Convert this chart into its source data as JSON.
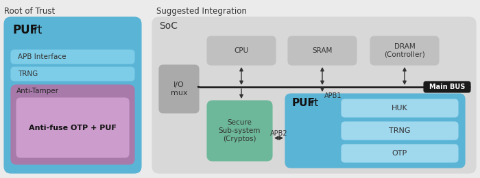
{
  "bg_color": "#ebebeb",
  "left_title": "Root of Trust",
  "right_title": "Suggested Integration",
  "pufrt_left_bg": "#5ab4d6",
  "left_items_bg": "#7ecde8",
  "left_items": [
    "APB Interface",
    "TRNG"
  ],
  "anti_tamper_bg": "#a87aaa",
  "anti_tamper_label": "Anti-Tamper",
  "anti_fuse_bg": "#cc9dcc",
  "anti_fuse_label": "Anti-fuse OTP + PUF",
  "soc_bg": "#d8d8d8",
  "soc_label": "SoC",
  "io_mux_bg": "#aaaaaa",
  "io_mux_label": "I/O\nmux",
  "cpu_bg": "#c0c0c0",
  "cpu_label": "CPU",
  "sram_bg": "#c0c0c0",
  "sram_label": "SRAM",
  "dram_bg": "#c0c0c0",
  "dram_label": "DRAM\n(Controller)",
  "main_bus_bg": "#1a1a1a",
  "main_bus_label": "Main BUS",
  "secure_bg": "#6db89a",
  "secure_label": "Secure\nSub-system\n(Cryptos)",
  "pufrt_right_bg": "#5ab4d6",
  "pufrt_right_label": "PUFrt",
  "right_items_bg": "#a0d8ee",
  "right_items": [
    "HUK",
    "TRNG",
    "OTP"
  ],
  "apb1_label": "APB1",
  "apb2_label": "APB2",
  "arrow_color": "#333333",
  "text_color": "#333333"
}
